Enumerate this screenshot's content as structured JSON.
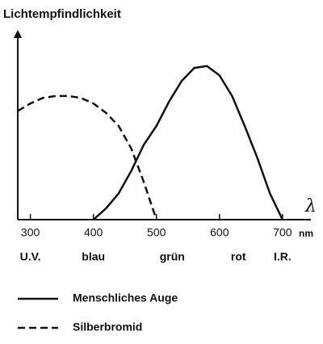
{
  "chart_data": {
    "type": "line",
    "ylabel": "Lichtempfindlichkeit",
    "xlabel": "λ",
    "x_unit": "nm",
    "x": [
      280,
      300,
      320,
      340,
      360,
      380,
      400,
      420,
      440,
      460,
      480,
      500,
      520,
      540,
      560,
      580,
      600,
      620,
      640,
      660,
      680,
      700
    ],
    "xlim": [
      280,
      745
    ],
    "xticks": [
      300,
      400,
      500,
      600,
      700
    ],
    "ylim": [
      0,
      100
    ],
    "series": [
      {
        "name": "Menschliches Auge",
        "color": "#111111",
        "dash": "solid",
        "values": [
          null,
          null,
          null,
          null,
          null,
          null,
          0,
          6,
          14,
          26,
          40,
          50,
          63,
          74,
          81,
          82,
          77,
          66,
          50,
          33,
          14,
          0
        ]
      },
      {
        "name": "Silberbromid",
        "color": "#111111",
        "dash": "dashed",
        "values": [
          58,
          62,
          65,
          66,
          66,
          65,
          62,
          57,
          50,
          38,
          20,
          0,
          null,
          null,
          null,
          null,
          null,
          null,
          null,
          null,
          null,
          null
        ]
      }
    ],
    "bands": [
      {
        "label": "U.V.",
        "x": 300,
        "color": "#333333"
      },
      {
        "label": "blau",
        "x": 400,
        "color": "#888888"
      },
      {
        "label": "grün",
        "x": 525,
        "color": "#aaaaaa"
      },
      {
        "label": "rot",
        "x": 630,
        "color": "#888888"
      },
      {
        "label": "I.R.",
        "x": 700,
        "color": "#333333"
      }
    ],
    "legend": "bottom-left"
  }
}
